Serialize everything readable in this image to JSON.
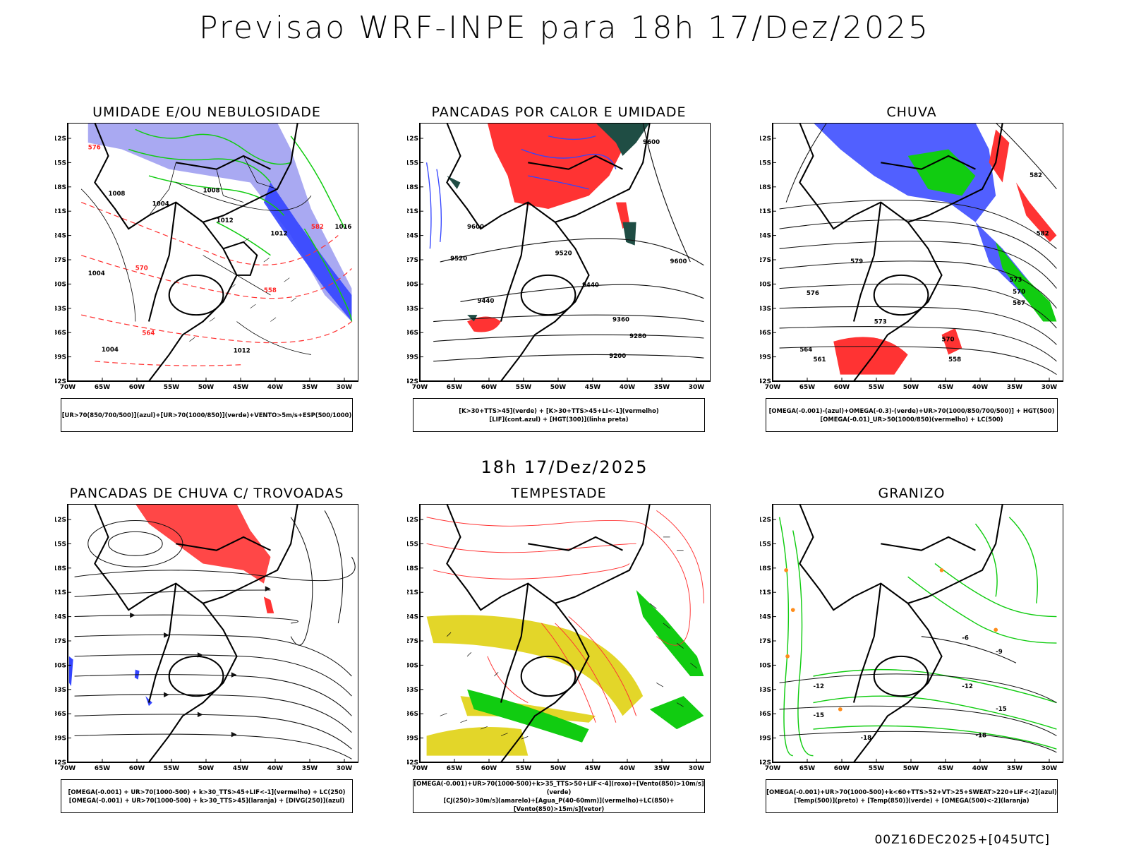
{
  "title": "Previsao WRF-INPE  para 18h 17/Dez/2025",
  "middle_label": "18h 17/Dez/2025",
  "footer": "00Z16DEC2025+[045UTC]",
  "axes": {
    "lat_ticks": [
      "12S",
      "15S",
      "18S",
      "21S",
      "24S",
      "27S",
      "30S",
      "33S",
      "36S",
      "39S",
      "42S"
    ],
    "lon_ticks": [
      "70W",
      "65W",
      "60W",
      "55W",
      "50W",
      "45W",
      "40W",
      "35W",
      "30W"
    ]
  },
  "colors": {
    "blue": "#3344ff",
    "lightblue": "#9a9af0",
    "green": "#11cc11",
    "red": "#ff2222",
    "darkgreen": "#1f4d44",
    "yellow": "#e3d629",
    "orange": "#ff8c1a"
  },
  "panels": [
    {
      "title": "UMIDADE E/OU NEBULOSIDADE",
      "caption": [
        "[UR>70(850/700/500)](azul)+[UR>70(1000/850)](verde)+VENTO>5m/s+ESP(500/1000)"
      ],
      "labels": [
        "1008",
        "1004",
        "1012",
        "1016",
        "1012",
        "1004",
        "1008",
        "1012",
        "576",
        "570",
        "564",
        "558",
        "582",
        "1004"
      ]
    },
    {
      "title": "PANCADAS POR CALOR E UMIDADE",
      "caption": [
        "[K>30+TTS>45](verde) + [K>30+TTS>45+LI<-1](vermelho)",
        "[LIF](cont.azul) + [HGT(300)](linha preta)"
      ],
      "labels": [
        "9600",
        "9520",
        "9440",
        "9360",
        "9280",
        "9200",
        "9600",
        "9520",
        "9440",
        "9600"
      ]
    },
    {
      "title": "CHUVA",
      "caption": [
        "[OMEGA(-0.001)-(azul)+OMEGA(-0.3)-(verde)+UR>70(1000/850/700/500)] + HGT(500)",
        "[OMEGA(-0.01)_UR>50(1000/850)(vermelho) + LC(500)"
      ],
      "labels": [
        "582",
        "576",
        "573",
        "570",
        "567",
        "564",
        "561",
        "558",
        "582",
        "579",
        "573",
        "570"
      ]
    },
    {
      "title": "PANCADAS DE CHUVA C/ TROVOADAS",
      "caption": [
        "[OMEGA(-0.001) + UR>70(1000-500) + k>30_TTS>45+LIF<-1](vermelho) + LC(250)",
        "[OMEGA(-0.001) + UR>70(1000-500) + k>30_TTS>45](laranja) + [DIVG(250)](azul)"
      ],
      "labels": []
    },
    {
      "title": "TEMPESTADE",
      "caption": [
        "[OMEGA(-0.001)+UR>70(1000-500)+k>35_TTS>50+LIF<-4](roxo)+[Vento(850)>10m/s](verde)",
        "[CJ(250)>30m/s](amarelo)+[Agua_P(40-60mm)](vermelho)+LC(850)+[Vento(850)>15m/s](vetor)"
      ],
      "labels": []
    },
    {
      "title": "GRANIZO",
      "caption": [
        "[OMEGA(-0.001)+UR>70(1000-500)+k<60+TTS>52+VT>25+SWEAT>220+LIF<-2](azul)",
        "[Temp(500)](preto) + [Temp(850)](verde) + [OMEGA(500)<-2](laranja)"
      ],
      "labels": [
        "-12",
        "-15",
        "-18",
        "-12",
        "-15",
        "-18",
        "-6",
        "-9"
      ]
    }
  ]
}
